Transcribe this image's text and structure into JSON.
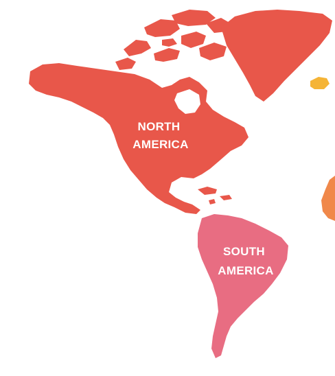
{
  "regions": [
    {
      "id": "north-america",
      "label_lines": [
        "NORTH",
        "AMERICA"
      ],
      "color": "#e8574a"
    },
    {
      "id": "greenland",
      "label_lines": [],
      "color": "#e8574a"
    },
    {
      "id": "south-america",
      "label_lines": [
        "SOUTH",
        "AMERICA"
      ],
      "color": "#e86d82"
    },
    {
      "id": "iceland",
      "label_lines": [],
      "color": "#f5b436"
    },
    {
      "id": "africa-edge",
      "label_lines": [],
      "color": "#f0884a"
    }
  ],
  "background": "#ffffff"
}
